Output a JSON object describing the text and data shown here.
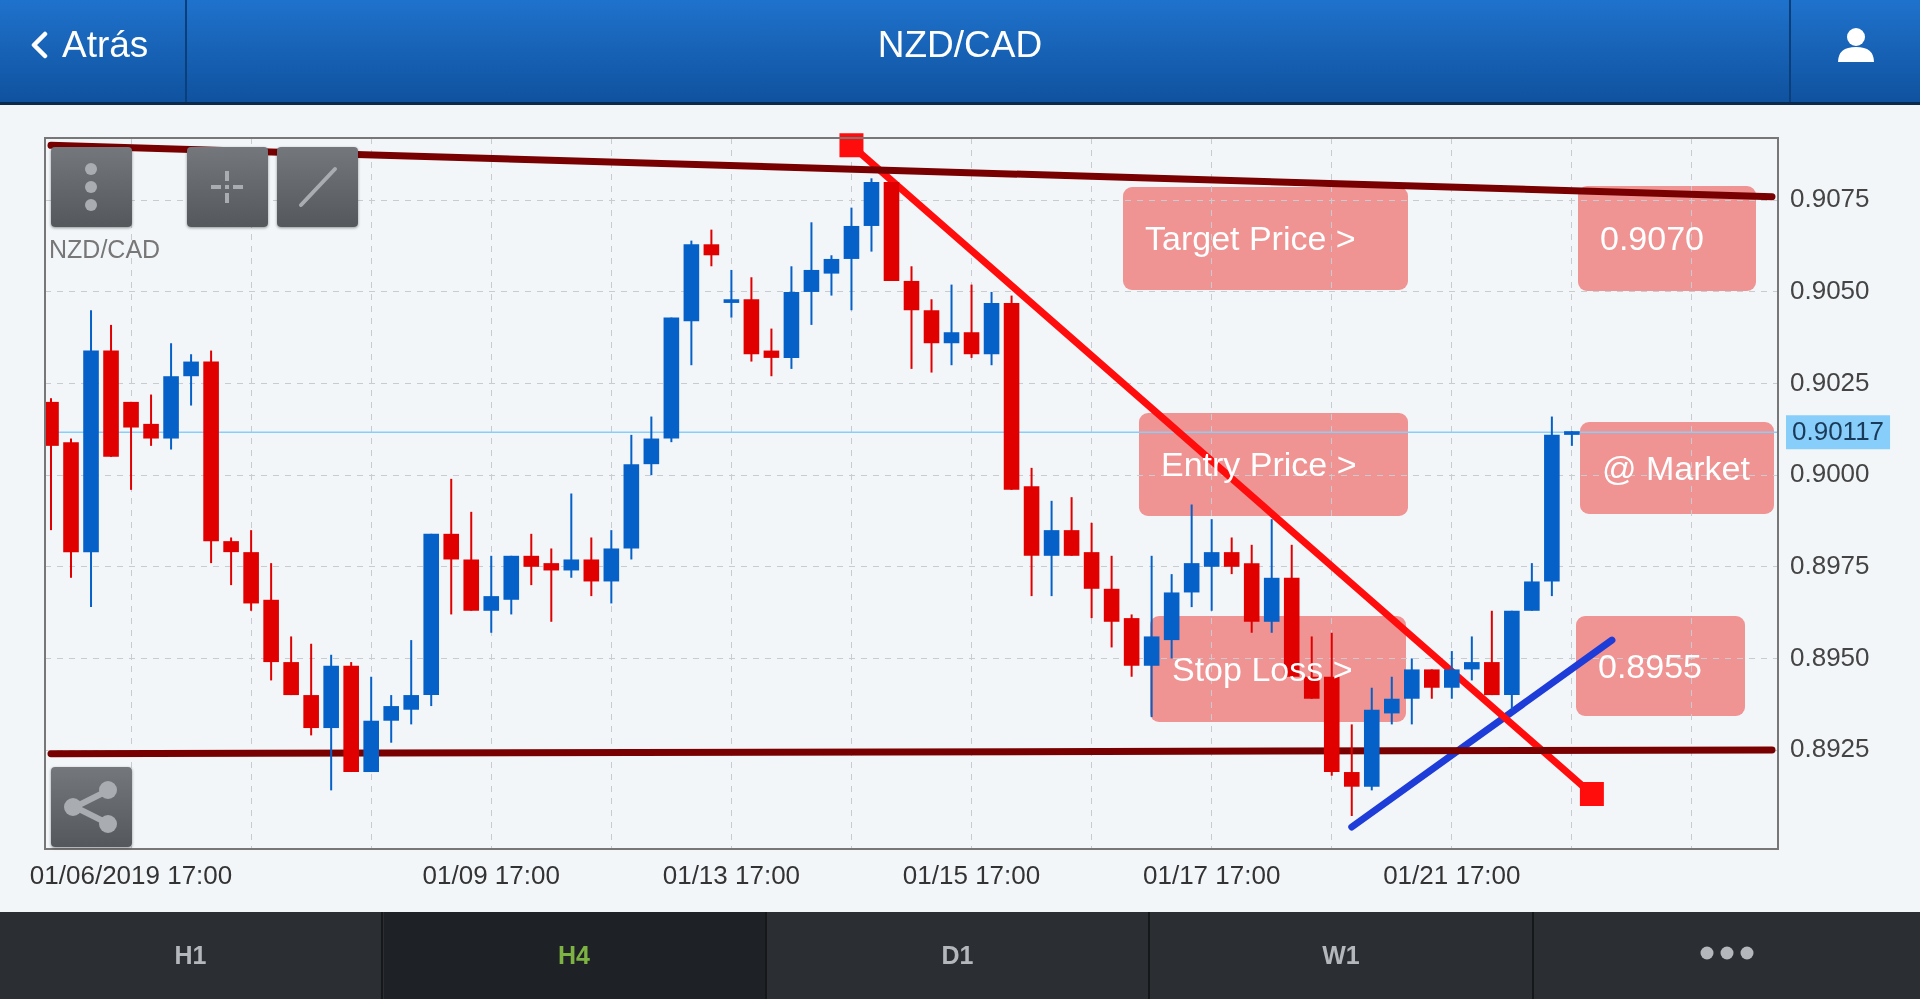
{
  "chart_data": {
    "type": "candlestick",
    "title": "NZD/CAD",
    "categories": [
      null,
      null,
      null,
      null,
      "01/06/2019 17:00",
      null,
      null,
      null,
      null,
      null,
      null,
      null,
      null,
      null,
      null,
      null,
      null,
      null,
      null,
      null,
      null,
      null,
      "01/09 17:00",
      null,
      null,
      null,
      null,
      null,
      null,
      null,
      null,
      null,
      null,
      null,
      "01/13 17:00",
      null,
      null,
      null,
      null,
      null,
      null,
      null,
      null,
      null,
      null,
      null,
      "01/15 17:00",
      null,
      null,
      null,
      null,
      null,
      null,
      null,
      null,
      null,
      null,
      null,
      "01/17 17:00",
      null,
      null,
      null,
      null,
      null,
      null,
      null,
      null,
      null,
      null,
      null,
      "01/21 17:00",
      null,
      null,
      null,
      null,
      null,
      null,
      null,
      null,
      null,
      null,
      null,
      null,
      null,
      null,
      null,
      null
    ],
    "ohlc": [
      [
        0.902,
        0.9021,
        0.8985,
        0.9008
      ],
      [
        0.9009,
        0.901,
        0.8972,
        0.8979
      ],
      [
        0.8979,
        0.9045,
        0.8964,
        0.9034
      ],
      [
        0.9034,
        0.9041,
        0.9005,
        0.9005
      ],
      [
        0.902,
        0.902,
        0.8996,
        0.9013
      ],
      [
        0.9014,
        0.9022,
        0.9008,
        0.901
      ],
      [
        0.901,
        0.9036,
        0.9007,
        0.9027
      ],
      [
        0.9027,
        0.9033,
        0.9019,
        0.9031
      ],
      [
        0.9031,
        0.9034,
        0.8976,
        0.8982
      ],
      [
        0.8982,
        0.8983,
        0.897,
        0.8979
      ],
      [
        0.8979,
        0.8985,
        0.8963,
        0.8965
      ],
      [
        0.8966,
        0.8976,
        0.8944,
        0.8949
      ],
      [
        0.8949,
        0.8956,
        0.894,
        0.894
      ],
      [
        0.894,
        0.8954,
        0.8929,
        0.8931
      ],
      [
        0.8931,
        0.8951,
        0.8914,
        0.8948
      ],
      [
        0.8948,
        0.8949,
        0.8919,
        0.8919
      ],
      [
        0.8919,
        0.8945,
        0.8919,
        0.8933
      ],
      [
        0.8933,
        0.894,
        0.8927,
        0.8937
      ],
      [
        0.8936,
        0.8955,
        0.8932,
        0.894
      ],
      [
        0.894,
        0.8984,
        0.8937,
        0.8984
      ],
      [
        0.8984,
        0.8999,
        0.8962,
        0.8977
      ],
      [
        0.8977,
        0.899,
        0.8963,
        0.8963
      ],
      [
        0.8963,
        0.8978,
        0.8957,
        0.8967
      ],
      [
        0.8966,
        0.8978,
        0.8962,
        0.8978
      ],
      [
        0.8978,
        0.8984,
        0.897,
        0.8975
      ],
      [
        0.8976,
        0.898,
        0.896,
        0.8974
      ],
      [
        0.8974,
        0.8995,
        0.8972,
        0.8977
      ],
      [
        0.8977,
        0.8983,
        0.8967,
        0.8971
      ],
      [
        0.8971,
        0.8985,
        0.8965,
        0.898
      ],
      [
        0.898,
        0.9011,
        0.8977,
        0.9003
      ],
      [
        0.9003,
        0.9016,
        0.9,
        0.901
      ],
      [
        0.901,
        0.9043,
        0.9009,
        0.9043
      ],
      [
        0.9042,
        0.9064,
        0.903,
        0.9063
      ],
      [
        0.9063,
        0.9067,
        0.9057,
        0.906
      ],
      [
        0.9047,
        0.9056,
        0.9043,
        0.9048
      ],
      [
        0.9048,
        0.9054,
        0.9031,
        0.9033
      ],
      [
        0.9034,
        0.904,
        0.9027,
        0.9032
      ],
      [
        0.9032,
        0.9057,
        0.9029,
        0.905
      ],
      [
        0.905,
        0.9069,
        0.9041,
        0.9056
      ],
      [
        0.9055,
        0.906,
        0.9049,
        0.9059
      ],
      [
        0.9059,
        0.9073,
        0.9045,
        0.9068
      ],
      [
        0.9068,
        0.9081,
        0.9061,
        0.908
      ],
      [
        0.908,
        0.908,
        0.9053,
        0.9053
      ],
      [
        0.9053,
        0.9057,
        0.9029,
        0.9045
      ],
      [
        0.9045,
        0.9048,
        0.9028,
        0.9036
      ],
      [
        0.9036,
        0.9052,
        0.903,
        0.9039
      ],
      [
        0.9039,
        0.9052,
        0.9032,
        0.9033
      ],
      [
        0.9033,
        0.905,
        0.903,
        0.9047
      ],
      [
        0.9047,
        0.9049,
        0.8996,
        0.8996
      ],
      [
        0.8997,
        0.9002,
        0.8967,
        0.8978
      ],
      [
        0.8978,
        0.8993,
        0.8967,
        0.8985
      ],
      [
        0.8985,
        0.8994,
        0.8978,
        0.8978
      ],
      [
        0.8979,
        0.8987,
        0.8961,
        0.8969
      ],
      [
        0.8969,
        0.8978,
        0.8953,
        0.896
      ],
      [
        0.8961,
        0.8962,
        0.8945,
        0.8948
      ],
      [
        0.8948,
        0.8978,
        0.8934,
        0.8956
      ],
      [
        0.8955,
        0.8973,
        0.895,
        0.8968
      ],
      [
        0.8968,
        0.8992,
        0.8964,
        0.8976
      ],
      [
        0.8975,
        0.8988,
        0.8963,
        0.8979
      ],
      [
        0.8979,
        0.8983,
        0.8973,
        0.8975
      ],
      [
        0.8976,
        0.8981,
        0.8957,
        0.896
      ],
      [
        0.896,
        0.8988,
        0.8957,
        0.8972
      ],
      [
        0.8972,
        0.8981,
        0.8945,
        0.8945
      ],
      [
        0.8945,
        0.8956,
        0.8939,
        0.8939
      ],
      [
        0.8945,
        0.8957,
        0.8918,
        0.8919
      ],
      [
        0.8919,
        0.8932,
        0.8907,
        0.8915
      ],
      [
        0.8915,
        0.8942,
        0.8914,
        0.8936
      ],
      [
        0.8935,
        0.8945,
        0.8932,
        0.8939
      ],
      [
        0.8939,
        0.895,
        0.8932,
        0.8947
      ],
      [
        0.8947,
        0.8947,
        0.8939,
        0.8942
      ],
      [
        0.8942,
        0.8952,
        0.8939,
        0.8947
      ],
      [
        0.8947,
        0.8956,
        0.8944,
        0.8949
      ],
      [
        0.8949,
        0.8963,
        0.894,
        0.894
      ],
      [
        0.894,
        0.8963,
        0.8936,
        0.8963
      ],
      [
        0.8963,
        0.8976,
        0.8963,
        0.8971
      ],
      [
        0.8971,
        0.9016,
        0.8967,
        0.9011
      ],
      [
        0.9011,
        0.9012,
        0.9008,
        0.9012
      ],
      null,
      null,
      null,
      null,
      null,
      null,
      null,
      null,
      null,
      null
    ],
    "colors": [
      "#e00000",
      "#e00000",
      "#0560c8",
      "#e00000",
      "#e00000",
      "#e00000",
      "#0560c8",
      "#0560c8",
      "#e00000",
      "#e00000",
      "#e00000",
      "#e00000",
      "#e00000",
      "#e00000",
      "#0560c8",
      "#e00000",
      "#0560c8",
      "#0560c8",
      "#0560c8",
      "#0560c8",
      "#e00000",
      "#e00000",
      "#0560c8",
      "#0560c8",
      "#e00000",
      "#e00000",
      "#0560c8",
      "#e00000",
      "#0560c8",
      "#0560c8",
      "#0560c8",
      "#0560c8",
      "#0560c8",
      "#e00000",
      "#0560c8",
      "#e00000",
      "#e00000",
      "#0560c8",
      "#0560c8",
      "#0560c8",
      "#0560c8",
      "#0560c8",
      "#e00000",
      "#e00000",
      "#e00000",
      "#0560c8",
      "#e00000",
      "#0560c8",
      "#e00000",
      "#e00000",
      "#0560c8",
      "#e00000",
      "#e00000",
      "#e00000",
      "#e00000",
      "#0560c8",
      "#0560c8",
      "#0560c8",
      "#0560c8",
      "#e00000",
      "#e00000",
      "#0560c8",
      "#e00000",
      "#e00000",
      "#e00000",
      "#e00000",
      "#0560c8",
      "#0560c8",
      "#0560c8",
      "#e00000",
      "#0560c8",
      "#0560c8",
      "#e00000",
      "#0560c8",
      "#0560c8",
      "#0560c8",
      "#0560c8",
      null,
      null,
      null,
      null,
      null,
      null,
      null,
      null,
      null,
      null
    ],
    "series": [
      {
        "type": "line",
        "color": "#780000",
        "values": [
          0.909,
          null,
          null,
          null,
          null,
          null,
          null,
          null,
          null,
          null,
          null,
          null,
          null,
          null,
          null,
          null,
          null,
          null,
          null,
          null,
          null,
          null,
          null,
          null,
          null,
          null,
          null,
          null,
          null,
          null,
          null,
          null,
          null,
          null,
          null,
          null,
          null,
          null,
          null,
          null,
          null,
          null,
          null,
          null,
          null,
          null,
          null,
          null,
          null,
          null,
          null,
          null,
          null,
          null,
          null,
          null,
          null,
          null,
          null,
          null,
          null,
          null,
          null,
          null,
          null,
          null,
          null,
          null,
          null,
          null,
          null,
          null,
          null,
          null,
          null,
          null,
          null,
          null,
          null,
          null,
          null,
          null,
          null,
          null,
          null,
          null,
          0.9076
        ]
      },
      {
        "type": "line",
        "color": "#780000",
        "values": [
          0.8924,
          null,
          null,
          null,
          null,
          null,
          null,
          null,
          null,
          null,
          null,
          null,
          null,
          null,
          null,
          null,
          null,
          null,
          null,
          null,
          null,
          null,
          null,
          null,
          null,
          null,
          null,
          null,
          null,
          null,
          null,
          null,
          null,
          null,
          null,
          null,
          null,
          null,
          null,
          null,
          null,
          null,
          null,
          null,
          null,
          null,
          null,
          null,
          null,
          null,
          null,
          null,
          null,
          null,
          null,
          null,
          null,
          null,
          null,
          null,
          null,
          null,
          null,
          null,
          null,
          null,
          null,
          null,
          null,
          null,
          null,
          null,
          null,
          null,
          null,
          null,
          null,
          null,
          null,
          null,
          null,
          null,
          null,
          null,
          null,
          null,
          0.8925
        ]
      },
      {
        "type": "line",
        "color": "#ff0d0d",
        "marker": "square",
        "values": [
          null,
          null,
          null,
          null,
          null,
          null,
          null,
          null,
          null,
          null,
          null,
          null,
          null,
          null,
          null,
          null,
          null,
          null,
          null,
          null,
          null,
          null,
          null,
          null,
          null,
          null,
          null,
          null,
          null,
          null,
          null,
          null,
          null,
          null,
          null,
          null,
          null,
          null,
          null,
          null,
          0.909,
          null,
          null,
          null,
          null,
          null,
          null,
          null,
          null,
          null,
          null,
          null,
          null,
          null,
          null,
          null,
          null,
          null,
          null,
          null,
          null,
          null,
          null,
          null,
          null,
          null,
          null,
          null,
          null,
          null,
          null,
          null,
          null,
          null,
          null,
          null,
          null,
          0.8913,
          null,
          null,
          null,
          null,
          null,
          null,
          null,
          null,
          null
        ]
      },
      {
        "type": "line",
        "color": "#1e3cd8",
        "values": [
          null,
          null,
          null,
          null,
          null,
          null,
          null,
          null,
          null,
          null,
          null,
          null,
          null,
          null,
          null,
          null,
          null,
          null,
          null,
          null,
          null,
          null,
          null,
          null,
          null,
          null,
          null,
          null,
          null,
          null,
          null,
          null,
          null,
          null,
          null,
          null,
          null,
          null,
          null,
          null,
          null,
          null,
          null,
          null,
          null,
          null,
          null,
          null,
          null,
          null,
          null,
          null,
          null,
          null,
          null,
          null,
          null,
          null,
          null,
          null,
          null,
          null,
          null,
          null,
          null,
          0.8904,
          null,
          null,
          null,
          null,
          null,
          null,
          null,
          null,
          null,
          null,
          null,
          null,
          0.8955,
          null,
          null,
          null,
          null,
          null,
          null,
          null,
          null
        ]
      }
    ],
    "ylim": [
      0.8898,
      0.9092
    ],
    "yticks": [
      0.8925,
      {
        "value": 0.895,
        "label": "0.8950"
      },
      0.8975,
      {
        "value": 0.9,
        "label": "0.9000"
      },
      0.9025,
      {
        "value": 0.905,
        "label": "0.9050"
      },
      0.9075
    ],
    "grid": true,
    "ref_lines": [
      {
        "axis": "y",
        "value": 0.90117,
        "label": "0.90117",
        "color": "#87cefa"
      }
    ],
    "annotations": [
      "Atrás",
      "NZD/CAD",
      "Target Price >",
      "0.9070",
      "Entry Price >",
      "@ Market",
      "Stop Loss >",
      "0.8955",
      "H1",
      "H4",
      "D1",
      "W1"
    ]
  }
}
